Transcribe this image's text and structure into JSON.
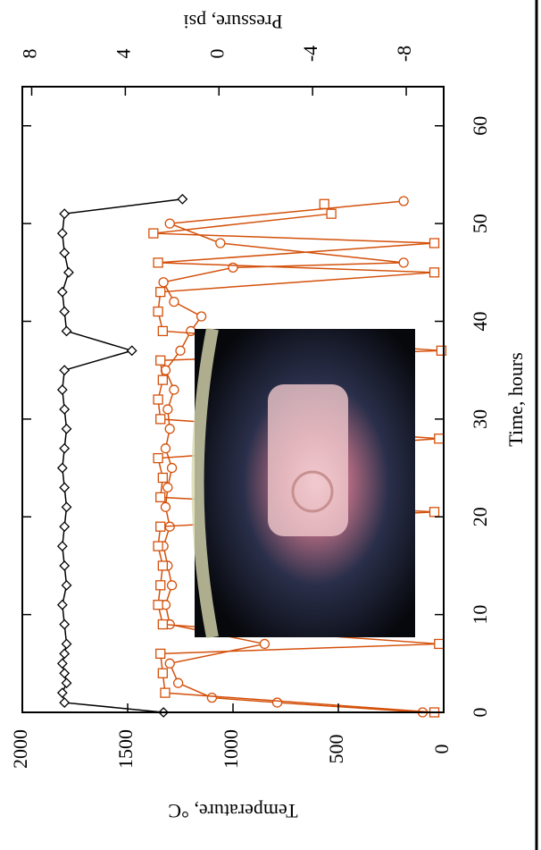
{
  "chart_data": {
    "type": "line",
    "x_label": "Time, hours",
    "y_label": "Temperature, °C",
    "y2_label": "Pressure, psi",
    "xlim": [
      0,
      64
    ],
    "xticks": [
      0,
      10,
      20,
      30,
      40,
      50,
      60
    ],
    "ylim": [
      0,
      2000
    ],
    "yticks": [
      0,
      500,
      1000,
      1500,
      2000
    ],
    "y2lim": [
      -9.6,
      8.4
    ],
    "y2ticks": [
      -8,
      -4,
      0,
      4,
      8
    ],
    "series": [
      {
        "color": "#000000",
        "marker": "diamond",
        "x": [
          0,
          1,
          2,
          3,
          4,
          5,
          6,
          7,
          9,
          11,
          13,
          15,
          17,
          19,
          21,
          23,
          25,
          27,
          29,
          31,
          33,
          35,
          37,
          39,
          41,
          43,
          45,
          47,
          49,
          51,
          52.5
        ],
        "values": [
          1330,
          1800,
          1810,
          1790,
          1800,
          1810,
          1800,
          1790,
          1800,
          1810,
          1790,
          1800,
          1810,
          1800,
          1790,
          1800,
          1810,
          1800,
          1790,
          1800,
          1810,
          1800,
          1480,
          1790,
          1800,
          1810,
          1780,
          1800,
          1810,
          1800,
          1240
        ]
      },
      {
        "color": "#d4500a",
        "marker": "circle",
        "x": [
          0,
          1,
          1.5,
          3,
          5,
          7,
          9,
          11,
          13,
          15,
          17,
          19,
          21,
          23,
          25,
          27,
          29,
          31,
          33,
          35,
          37,
          39,
          40.5,
          42,
          44,
          45.5,
          46,
          48,
          50,
          52.3
        ],
        "values": [
          100,
          790,
          1100,
          1260,
          1300,
          850,
          1300,
          1320,
          1290,
          1310,
          1330,
          1300,
          1320,
          1310,
          1290,
          1320,
          1300,
          1310,
          1280,
          1320,
          1250,
          1200,
          1150,
          1280,
          1330,
          1000,
          190,
          1060,
          1300,
          190
        ]
      },
      {
        "color": "#d4500a",
        "marker": "square",
        "axis": "y2",
        "x": [
          0,
          2,
          4,
          6,
          7,
          9,
          11,
          13,
          15,
          17,
          19,
          20.5,
          22,
          24,
          26,
          28,
          30,
          32,
          34,
          36,
          37,
          39,
          41,
          43,
          45,
          46,
          48,
          49,
          51,
          52
        ],
        "values": [
          -9.2,
          2.3,
          2.4,
          2.5,
          -9.4,
          2.4,
          2.6,
          2.5,
          2.4,
          2.6,
          2.5,
          -9.2,
          2.5,
          2.4,
          2.6,
          -9.4,
          2.5,
          2.6,
          2.4,
          2.5,
          -9.5,
          2.4,
          2.6,
          2.5,
          -9.2,
          2.6,
          -9.2,
          2.8,
          -4.8,
          -4.5
        ]
      }
    ]
  }
}
